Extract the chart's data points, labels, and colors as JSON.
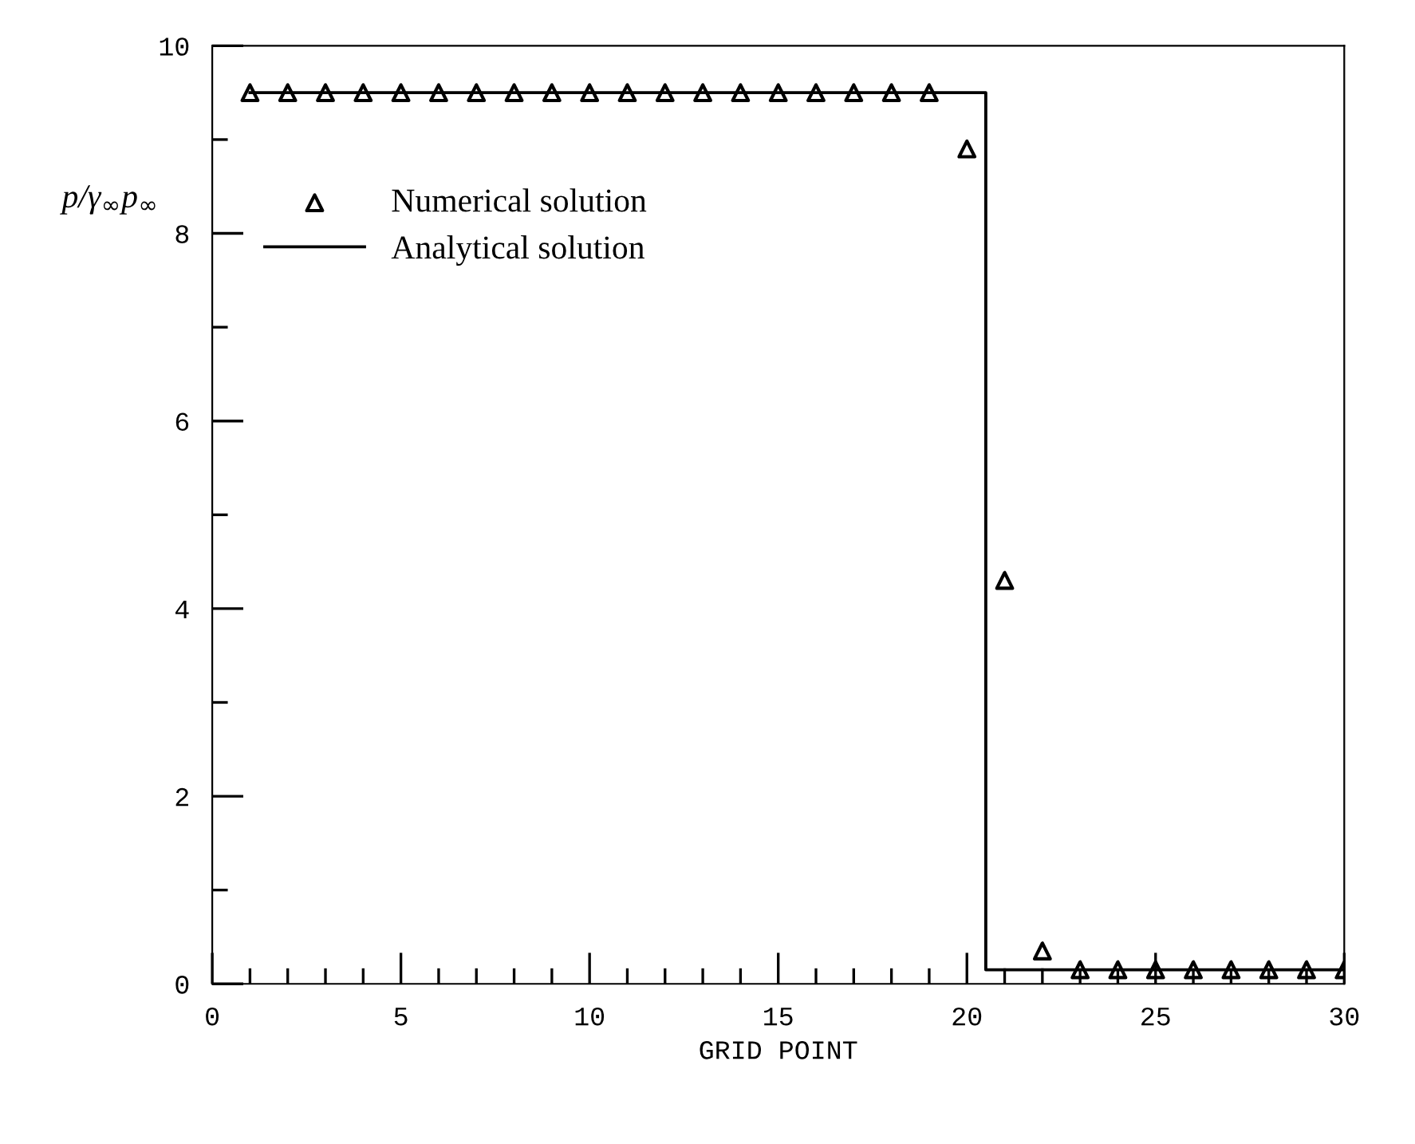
{
  "chart_data": {
    "type": "line",
    "xlabel": "GRID POINT",
    "ylabel": "p/γ$_{∞}$p$_{∞}$",
    "xlim": [
      0,
      30
    ],
    "ylim": [
      0,
      10
    ],
    "xticks": [
      0,
      {
        "value": 1,
        "label": null
      },
      {
        "value": 2,
        "label": null
      },
      {
        "value": 3,
        "label": null
      },
      {
        "value": 4,
        "label": null
      },
      5,
      {
        "value": 6,
        "label": null
      },
      {
        "value": 7,
        "label": null
      },
      {
        "value": 8,
        "label": null
      },
      {
        "value": 9,
        "label": null
      },
      10,
      {
        "value": 11,
        "label": null
      },
      {
        "value": 12,
        "label": null
      },
      {
        "value": 13,
        "label": null
      },
      {
        "value": 14,
        "label": null
      },
      15,
      {
        "value": 16,
        "label": null
      },
      {
        "value": 17,
        "label": null
      },
      {
        "value": 18,
        "label": null
      },
      {
        "value": 19,
        "label": null
      },
      20,
      {
        "value": 21,
        "label": null
      },
      {
        "value": 22,
        "label": null
      },
      {
        "value": 23,
        "label": null
      },
      {
        "value": 24,
        "label": null
      },
      25,
      {
        "value": 26,
        "label": null
      },
      {
        "value": 27,
        "label": null
      },
      {
        "value": 28,
        "label": null
      },
      {
        "value": 29,
        "label": null
      },
      30
    ],
    "yticks": [
      0,
      {
        "value": 1,
        "label": null
      },
      2,
      {
        "value": 3,
        "label": null
      },
      4,
      {
        "value": 5,
        "label": null
      },
      6,
      {
        "value": 7,
        "label": null
      },
      8,
      {
        "value": 9,
        "label": null
      },
      10
    ],
    "legend": "top left",
    "grid": false,
    "series": [
      {
        "name": "Numerical solution",
        "type": "scatter",
        "marker": "triangle",
        "color": "#000000",
        "x": [
          1,
          2,
          3,
          4,
          5,
          6,
          7,
          8,
          9,
          10,
          11,
          12,
          13,
          14,
          15,
          16,
          17,
          18,
          19,
          20,
          21,
          22,
          23,
          24,
          25,
          26,
          27,
          28,
          29,
          30
        ],
        "values": [
          9.5,
          9.5,
          9.5,
          9.5,
          9.5,
          9.5,
          9.5,
          9.5,
          9.5,
          9.5,
          9.5,
          9.5,
          9.5,
          9.5,
          9.5,
          9.5,
          9.5,
          9.5,
          9.5,
          8.9,
          4.3,
          0.35,
          0.15,
          0.15,
          0.15,
          0.15,
          0.15,
          0.15,
          0.15,
          0.15
        ]
      },
      {
        "name": "Analytical solution",
        "line_style": "solid",
        "color": "#000000",
        "x": [
          1,
          20.5,
          20.5,
          30
        ],
        "values": [
          9.5,
          9.5,
          0.15,
          0.15
        ]
      }
    ]
  }
}
